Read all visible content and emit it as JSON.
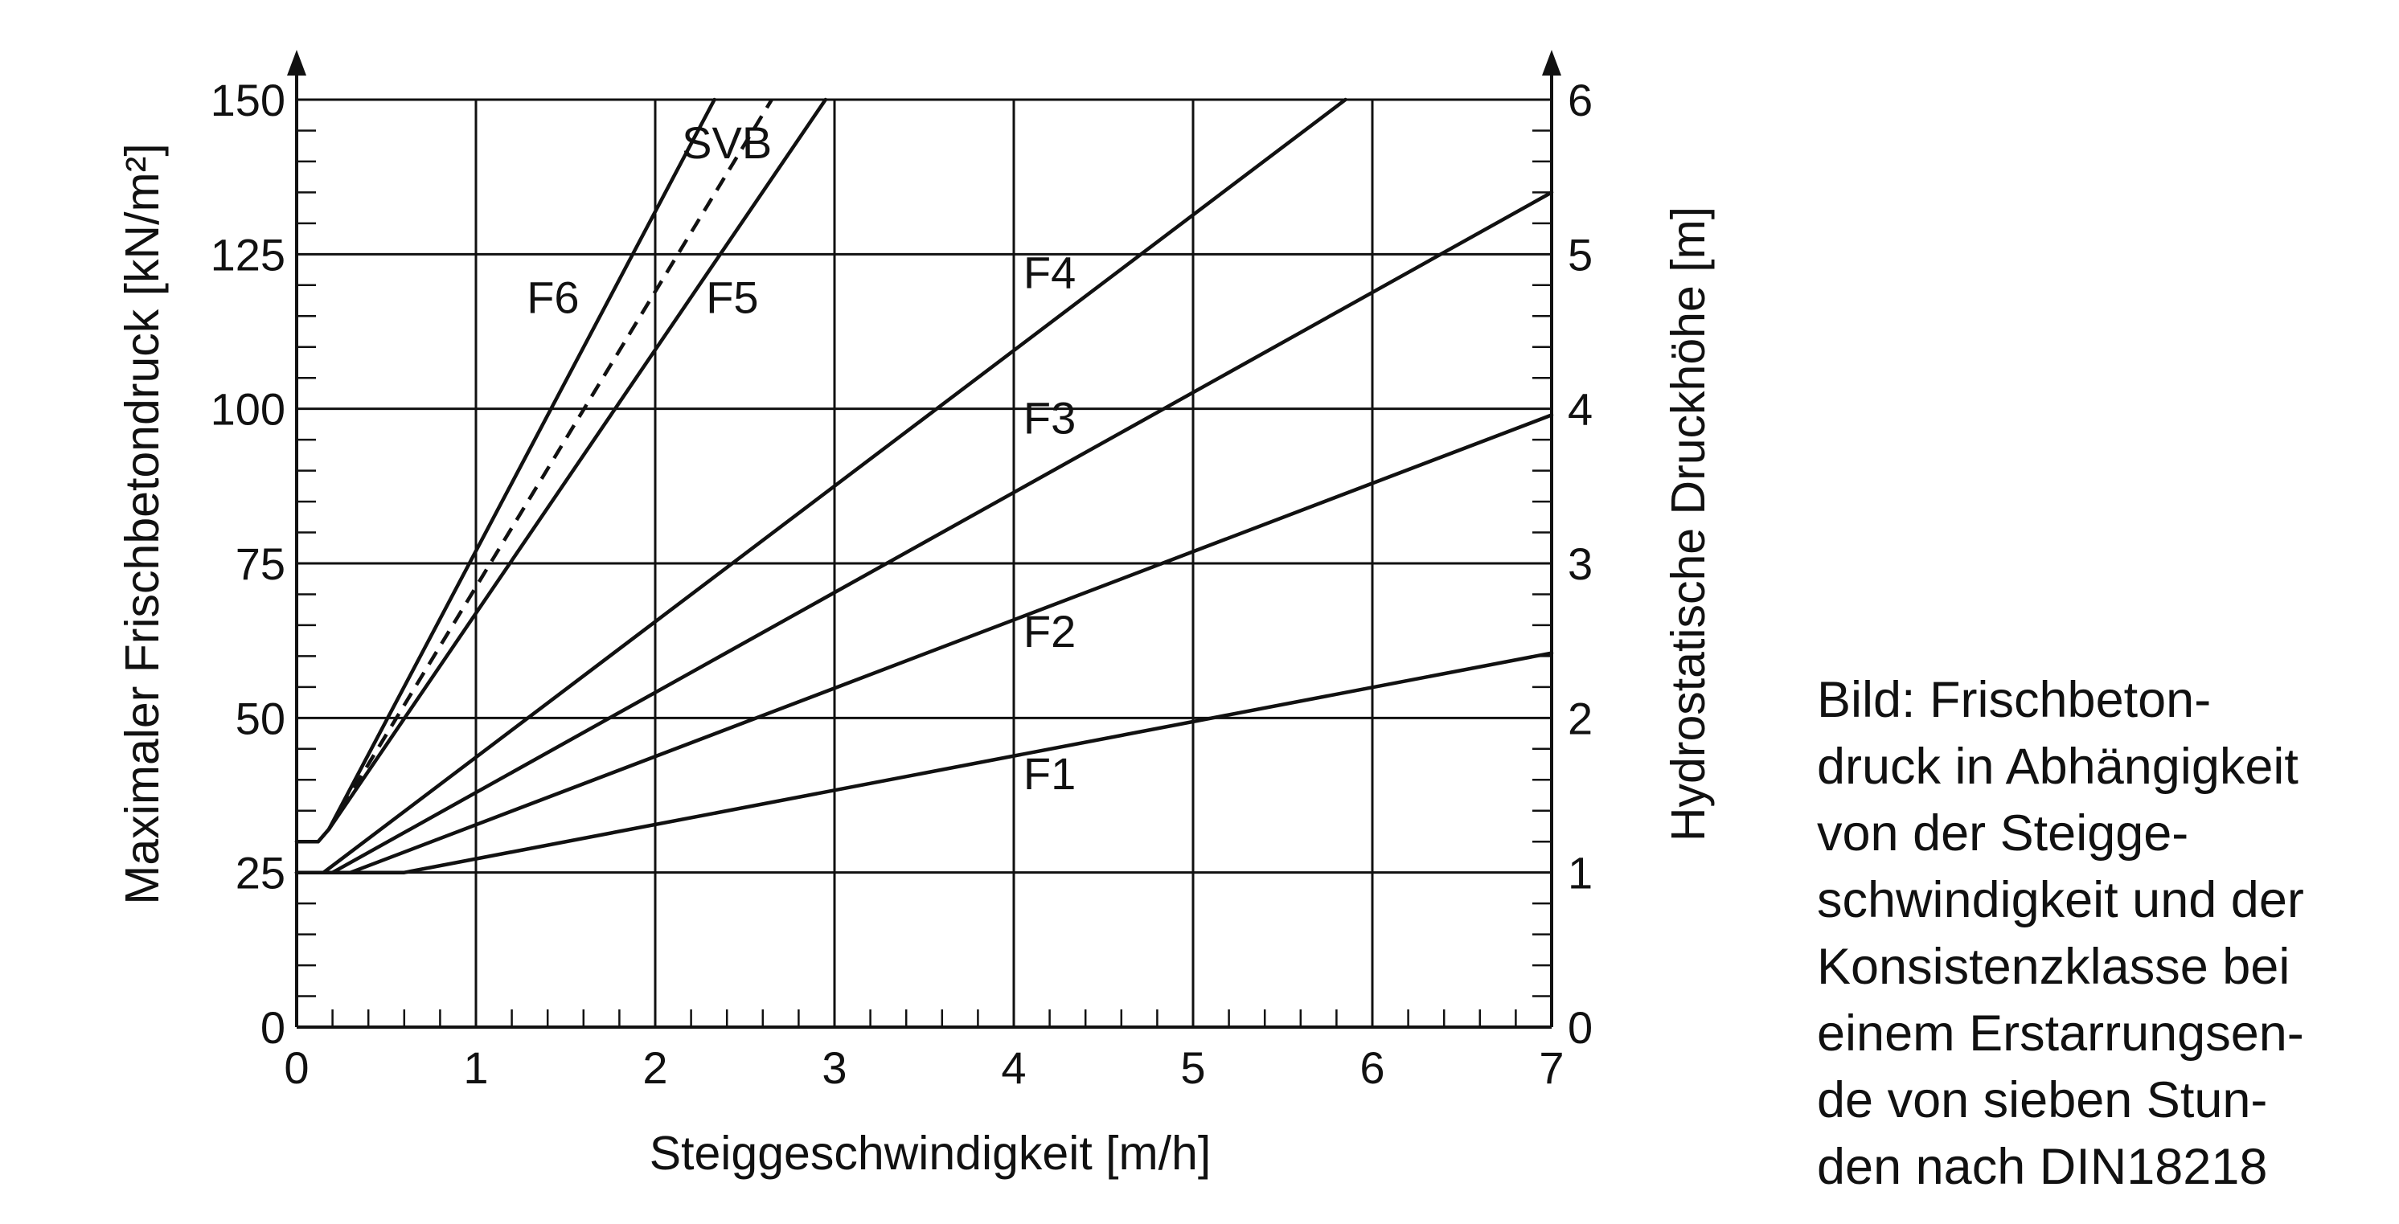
{
  "chart_data": {
    "type": "line",
    "xlabel": "Steiggeschwindigkeit [m/h]",
    "ylabel": "Maximaler Frischbetondruck [kN/m²]",
    "y2label": "Hydrostatische Druckhöhe [m]",
    "xlim": [
      0,
      7
    ],
    "ylim": [
      0,
      150
    ],
    "y2lim": [
      0,
      6
    ],
    "xticks": [
      "0",
      "1",
      "2",
      "3",
      "4",
      "5",
      "6",
      "7"
    ],
    "yticks": [
      "0",
      "25",
      "50",
      "75",
      "100",
      "125",
      "150"
    ],
    "y2ticks": [
      "0",
      "1",
      "2",
      "3",
      "4",
      "5",
      "6"
    ],
    "grid": true,
    "series": [
      {
        "name": "F1",
        "style": "solid",
        "points": [
          [
            0,
            25
          ],
          [
            0.6,
            25
          ],
          [
            7,
            60.5
          ]
        ]
      },
      {
        "name": "F2",
        "style": "solid",
        "points": [
          [
            0,
            25
          ],
          [
            0.3,
            25
          ],
          [
            7,
            99
          ]
        ]
      },
      {
        "name": "F3",
        "style": "solid",
        "points": [
          [
            0,
            25
          ],
          [
            0.2,
            25
          ],
          [
            7,
            135
          ]
        ]
      },
      {
        "name": "F4",
        "style": "solid",
        "points": [
          [
            0,
            25
          ],
          [
            0.15,
            25
          ],
          [
            5.85,
            150
          ]
        ]
      },
      {
        "name": "F5",
        "style": "solid",
        "points": [
          [
            0,
            30
          ],
          [
            0.12,
            30
          ],
          [
            0.18,
            32
          ],
          [
            2.95,
            150
          ]
        ]
      },
      {
        "name": "F6",
        "style": "solid",
        "points": [
          [
            0,
            30
          ],
          [
            0.12,
            30
          ],
          [
            0.18,
            32
          ],
          [
            2.33,
            150
          ]
        ]
      },
      {
        "name": "SVB",
        "style": "dashed",
        "points": [
          [
            0.18,
            32
          ],
          [
            2.65,
            150
          ]
        ]
      }
    ],
    "labels": [
      {
        "text": "F1",
        "x": 4.2,
        "y": 38.5
      },
      {
        "text": "F2",
        "x": 4.2,
        "y": 61.5
      },
      {
        "text": "F3",
        "x": 4.2,
        "y": 96.0
      },
      {
        "text": "F4",
        "x": 4.2,
        "y": 119.5
      },
      {
        "text": "F5",
        "x": 2.43,
        "y": 115.5
      },
      {
        "text": "F6",
        "x": 1.43,
        "y": 115.5
      },
      {
        "text": "SVB",
        "x": 2.4,
        "y": 140.5
      }
    ]
  },
  "caption": {
    "lines": [
      "Bild: Frischbeton-",
      "druck in Abhängigkeit",
      "von der Steigge-",
      "schwindigkeit und der",
      "Konsistenzklasse bei",
      "einem Erstarrungsen-",
      "de von sieben Stun-",
      "den nach DIN18218"
    ]
  }
}
